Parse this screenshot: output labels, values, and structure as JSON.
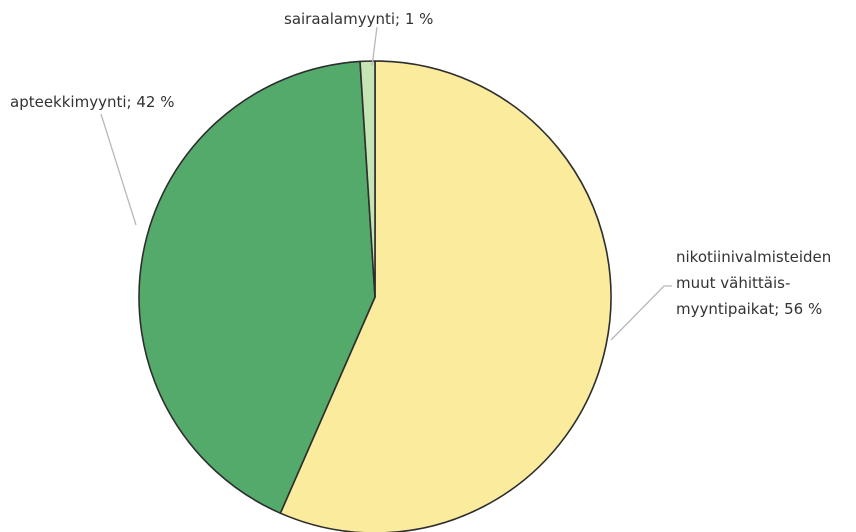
{
  "chart_data": {
    "type": "pie",
    "slices": [
      {
        "label_lines": [
          "nikotiinivalmisteiden",
          "muut vähittäis-",
          "myyntipaikat; 56 %"
        ],
        "value": 56,
        "color": "#faeb9d"
      },
      {
        "label_lines": [
          "apteekkimyynti; 42 %"
        ],
        "value": 42,
        "color": "#54aa6a"
      },
      {
        "label_lines": [
          "sairaalamyynti; 1 %"
        ],
        "value": 1,
        "color": "#c6e5b4"
      }
    ]
  }
}
